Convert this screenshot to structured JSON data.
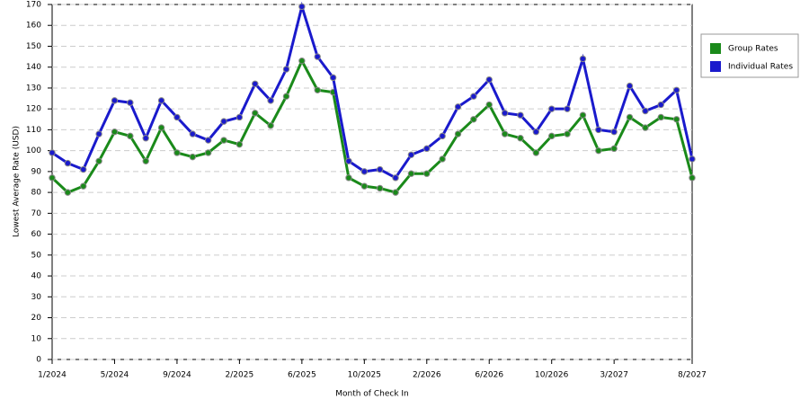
{
  "chart_data": {
    "type": "line",
    "x_label": "Month of Check In",
    "y_label": "Lowest Average Rate (USD)",
    "categories": [
      "1/2024",
      null,
      null,
      null,
      "5/2024",
      null,
      null,
      null,
      "9/2024",
      null,
      null,
      null,
      "2/2025",
      null,
      null,
      null,
      "6/2025",
      null,
      null,
      null,
      "10/2025",
      null,
      null,
      null,
      "2/2026",
      null,
      null,
      null,
      "6/2026",
      null,
      null,
      null,
      "10/2026",
      null,
      null,
      null,
      "3/2027",
      null,
      null,
      null,
      null,
      "8/2027"
    ],
    "series": [
      {
        "name": "Group Rates",
        "color": "#1a8a1a",
        "values": [
          87,
          80,
          83,
          95,
          109,
          107,
          95,
          111,
          99,
          97,
          99,
          105,
          103,
          118,
          112,
          126,
          143,
          129,
          128,
          87,
          83,
          82,
          80,
          89,
          89,
          96,
          108,
          115,
          122,
          108,
          106,
          99,
          107,
          108,
          117,
          100,
          101,
          116,
          111,
          116,
          115,
          87
        ]
      },
      {
        "name": "Individual Rates",
        "color": "#1a1acc",
        "values": [
          99,
          94,
          91,
          108,
          124,
          123,
          106,
          124,
          116,
          108,
          105,
          114,
          116,
          132,
          124,
          139,
          169,
          145,
          135,
          95,
          90,
          91,
          87,
          98,
          101,
          107,
          121,
          126,
          134,
          118,
          117,
          109,
          120,
          120,
          144,
          110,
          109,
          131,
          119,
          122,
          129,
          96
        ]
      }
    ],
    "ylim": [
      0,
      170
    ],
    "yticks": [
      0,
      10,
      20,
      30,
      40,
      50,
      60,
      70,
      80,
      90,
      100,
      110,
      120,
      130,
      140,
      150,
      160,
      170
    ],
    "grid": true,
    "legend": "right"
  }
}
